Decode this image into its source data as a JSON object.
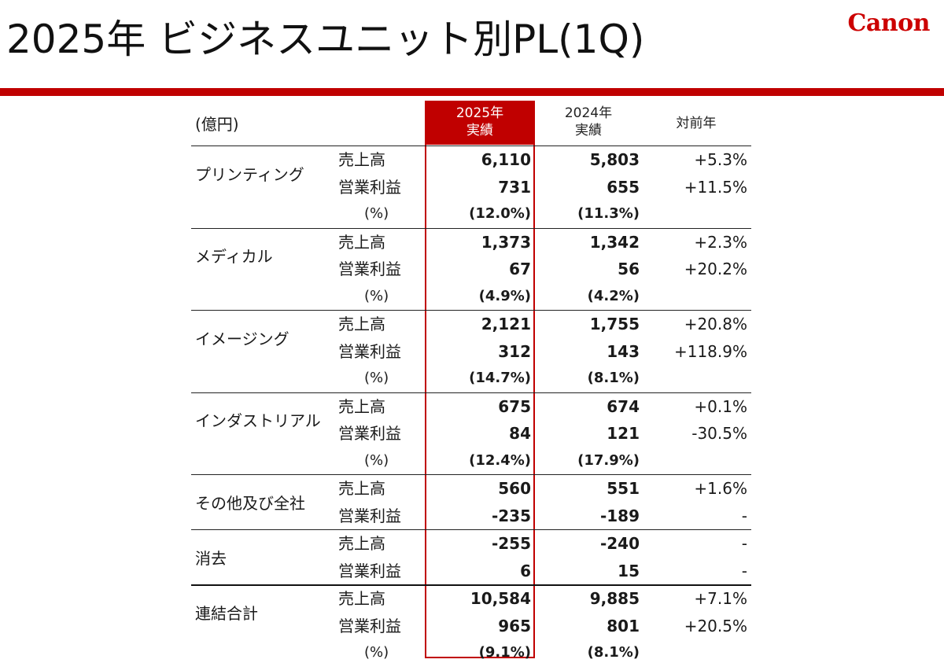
{
  "page": {
    "title": "2025年 ビジネスユニット別PL(1Q)",
    "logo": "Canon"
  },
  "table": {
    "unit": "(億円)",
    "headers": {
      "y2025_line1": "2025年",
      "y2025_line2": "実績",
      "y2024_line1": "2024年",
      "y2024_line2": "実績",
      "yoy": "対前年"
    },
    "metrics": {
      "sales": "売上高",
      "op": "営業利益",
      "pct": "(%)"
    },
    "segments": [
      {
        "name": "プリンティング",
        "rows": [
          {
            "y2025": "6,110",
            "y2024": "5,803",
            "yoy": "+5.3%"
          },
          {
            "y2025": "731",
            "y2024": "655",
            "yoy": "+11.5%"
          },
          {
            "y2025": "(12.0%)",
            "y2024": "(11.3%)",
            "yoy": ""
          }
        ]
      },
      {
        "name": "メディカル",
        "rows": [
          {
            "y2025": "1,373",
            "y2024": "1,342",
            "yoy": "+2.3%"
          },
          {
            "y2025": "67",
            "y2024": "56",
            "yoy": "+20.2%"
          },
          {
            "y2025": "(4.9%)",
            "y2024": "(4.2%)",
            "yoy": ""
          }
        ]
      },
      {
        "name": "イメージング",
        "rows": [
          {
            "y2025": "2,121",
            "y2024": "1,755",
            "yoy": "+20.8%"
          },
          {
            "y2025": "312",
            "y2024": "143",
            "yoy": "+118.9%"
          },
          {
            "y2025": "(14.7%)",
            "y2024": "(8.1%)",
            "yoy": ""
          }
        ]
      },
      {
        "name": "インダストリアル",
        "rows": [
          {
            "y2025": "675",
            "y2024": "674",
            "yoy": "+0.1%"
          },
          {
            "y2025": "84",
            "y2024": "121",
            "yoy": "-30.5%"
          },
          {
            "y2025": "(12.4%)",
            "y2024": "(17.9%)",
            "yoy": ""
          }
        ]
      },
      {
        "name": "その他及び全社",
        "rows": [
          {
            "y2025": "560",
            "y2024": "551",
            "yoy": "+1.6%"
          },
          {
            "y2025": "-235",
            "y2024": "-189",
            "yoy": "-"
          }
        ]
      },
      {
        "name": "消去",
        "rows": [
          {
            "y2025": "-255",
            "y2024": "-240",
            "yoy": "-"
          },
          {
            "y2025": "6",
            "y2024": "15",
            "yoy": "-"
          }
        ]
      },
      {
        "name": "連結合計",
        "rows": [
          {
            "y2025": "10,584",
            "y2024": "9,885",
            "yoy": "+7.1%"
          },
          {
            "y2025": "965",
            "y2024": "801",
            "yoy": "+20.5%"
          },
          {
            "y2025": "(9.1%)",
            "y2024": "(8.1%)",
            "yoy": ""
          }
        ]
      }
    ]
  }
}
